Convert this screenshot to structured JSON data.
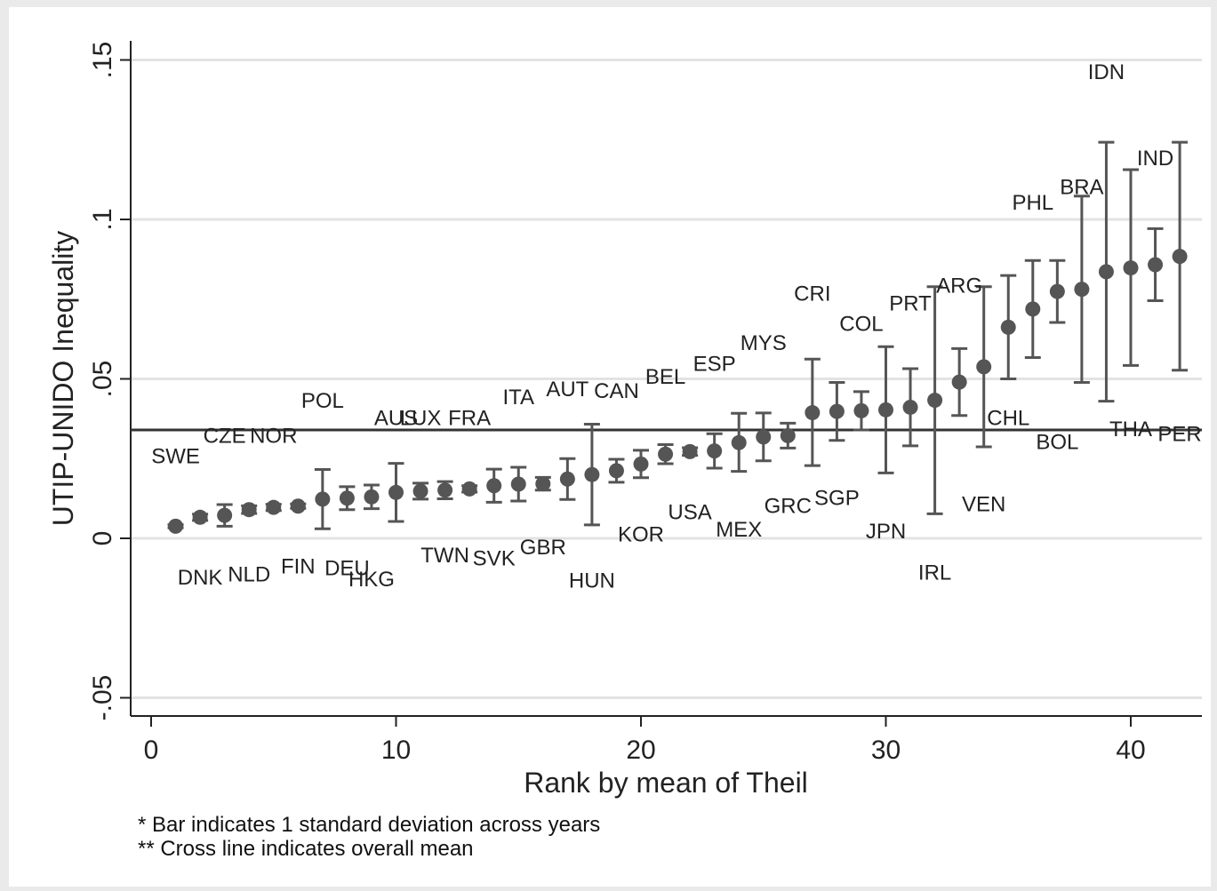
{
  "chart_data": {
    "type": "scatter",
    "xlabel": "Rank by mean of Theil",
    "ylabel": "UTIP-UNIDO Inequality",
    "xlim": [
      -0.8,
      42.5
    ],
    "ylim": [
      -0.056,
      0.156
    ],
    "x_ticks": [
      0,
      10,
      20,
      30,
      40
    ],
    "x_tick_labels": [
      "0",
      "10",
      "20",
      "30",
      "40"
    ],
    "y_ticks": [
      -0.05,
      0,
      0.05,
      0.1,
      0.15
    ],
    "y_tick_labels": [
      "-.05",
      "0",
      ".05",
      ".1",
      ".15"
    ],
    "grid": true,
    "overall_mean": 0.034,
    "notes": [
      "* Bar indicates 1 standard deviation across years",
      "** Cross line indicates overall mean"
    ],
    "points": [
      {
        "rank": 1,
        "mean": 0.0038,
        "lo": 0.0033,
        "hi": 0.0043
      },
      {
        "rank": 2,
        "mean": 0.0066,
        "lo": 0.0056,
        "hi": 0.0076
      },
      {
        "rank": 3,
        "mean": 0.0072,
        "lo": 0.0038,
        "hi": 0.0106
      },
      {
        "rank": 4,
        "mean": 0.009,
        "lo": 0.0078,
        "hi": 0.0102
      },
      {
        "rank": 5,
        "mean": 0.0097,
        "lo": 0.0087,
        "hi": 0.0107
      },
      {
        "rank": 6,
        "mean": 0.0101,
        "lo": 0.0094,
        "hi": 0.0108
      },
      {
        "rank": 7,
        "mean": 0.0123,
        "lo": 0.003,
        "hi": 0.0216
      },
      {
        "rank": 8,
        "mean": 0.0126,
        "lo": 0.009,
        "hi": 0.0162
      },
      {
        "rank": 9,
        "mean": 0.013,
        "lo": 0.0093,
        "hi": 0.0167
      },
      {
        "rank": 10,
        "mean": 0.0144,
        "lo": 0.0053,
        "hi": 0.0235
      },
      {
        "rank": 11,
        "mean": 0.0148,
        "lo": 0.0123,
        "hi": 0.0173
      },
      {
        "rank": 12,
        "mean": 0.0151,
        "lo": 0.0124,
        "hi": 0.0178
      },
      {
        "rank": 13,
        "mean": 0.0155,
        "lo": 0.0145,
        "hi": 0.0165
      },
      {
        "rank": 14,
        "mean": 0.0165,
        "lo": 0.0113,
        "hi": 0.0217
      },
      {
        "rank": 15,
        "mean": 0.017,
        "lo": 0.0117,
        "hi": 0.0223
      },
      {
        "rank": 16,
        "mean": 0.0171,
        "lo": 0.0151,
        "hi": 0.0191
      },
      {
        "rank": 17,
        "mean": 0.0186,
        "lo": 0.0122,
        "hi": 0.025
      },
      {
        "rank": 18,
        "mean": 0.02,
        "lo": 0.0042,
        "hi": 0.0358
      },
      {
        "rank": 19,
        "mean": 0.0212,
        "lo": 0.0176,
        "hi": 0.0248
      },
      {
        "rank": 20,
        "mean": 0.0233,
        "lo": 0.019,
        "hi": 0.0276
      },
      {
        "rank": 21,
        "mean": 0.0264,
        "lo": 0.0234,
        "hi": 0.0294
      },
      {
        "rank": 22,
        "mean": 0.0272,
        "lo": 0.026,
        "hi": 0.0284
      },
      {
        "rank": 23,
        "mean": 0.0274,
        "lo": 0.022,
        "hi": 0.0328
      },
      {
        "rank": 24,
        "mean": 0.03,
        "lo": 0.021,
        "hi": 0.0392
      },
      {
        "rank": 25,
        "mean": 0.0318,
        "lo": 0.0243,
        "hi": 0.0393
      },
      {
        "rank": 26,
        "mean": 0.0322,
        "lo": 0.0283,
        "hi": 0.0361
      },
      {
        "rank": 27,
        "mean": 0.0394,
        "lo": 0.0228,
        "hi": 0.0562
      },
      {
        "rank": 28,
        "mean": 0.0398,
        "lo": 0.0307,
        "hi": 0.0489
      },
      {
        "rank": 29,
        "mean": 0.04,
        "lo": 0.034,
        "hi": 0.046
      },
      {
        "rank": 30,
        "mean": 0.0403,
        "lo": 0.0205,
        "hi": 0.0601
      },
      {
        "rank": 31,
        "mean": 0.0411,
        "lo": 0.029,
        "hi": 0.0532
      },
      {
        "rank": 32,
        "mean": 0.0433,
        "lo": 0.0077,
        "hi": 0.0789
      },
      {
        "rank": 33,
        "mean": 0.049,
        "lo": 0.0385,
        "hi": 0.0595
      },
      {
        "rank": 34,
        "mean": 0.0538,
        "lo": 0.0287,
        "hi": 0.0789
      },
      {
        "rank": 35,
        "mean": 0.0662,
        "lo": 0.05,
        "hi": 0.0824
      },
      {
        "rank": 36,
        "mean": 0.0719,
        "lo": 0.0567,
        "hi": 0.0871
      },
      {
        "rank": 37,
        "mean": 0.0774,
        "lo": 0.0677,
        "hi": 0.0871
      },
      {
        "rank": 38,
        "mean": 0.0781,
        "lo": 0.0489,
        "hi": 0.1073
      },
      {
        "rank": 39,
        "mean": 0.0836,
        "lo": 0.043,
        "hi": 0.1242
      },
      {
        "rank": 40,
        "mean": 0.0848,
        "lo": 0.0542,
        "hi": 0.1156
      },
      {
        "rank": 41,
        "mean": 0.0858,
        "lo": 0.0745,
        "hi": 0.0971
      },
      {
        "rank": 42,
        "mean": 0.0884,
        "lo": 0.0527,
        "hi": 0.1242
      }
    ],
    "labels": [
      {
        "text": "SWE",
        "x": 1.0,
        "y": 0.0235
      },
      {
        "text": "DNK",
        "x": 2.0,
        "y": -0.0145
      },
      {
        "text": "CZE",
        "x": 3.0,
        "y": 0.03
      },
      {
        "text": "NLD",
        "x": 4.0,
        "y": -0.0135
      },
      {
        "text": "NOR",
        "x": 5.0,
        "y": 0.03
      },
      {
        "text": "FIN",
        "x": 6.0,
        "y": -0.011
      },
      {
        "text": "POL",
        "x": 7.0,
        "y": 0.041
      },
      {
        "text": "DEU",
        "x": 8.0,
        "y": -0.0115
      },
      {
        "text": "HKG",
        "x": 9.0,
        "y": -0.015
      },
      {
        "text": "AUS",
        "x": 10.0,
        "y": 0.0355
      },
      {
        "text": "LUX",
        "x": 11.0,
        "y": 0.0355
      },
      {
        "text": "TWN",
        "x": 12.0,
        "y": -0.0075
      },
      {
        "text": "FRA",
        "x": 13.0,
        "y": 0.0355
      },
      {
        "text": "SVK",
        "x": 14.0,
        "y": -0.0085
      },
      {
        "text": "ITA",
        "x": 15.0,
        "y": 0.042
      },
      {
        "text": "GBR",
        "x": 16.0,
        "y": -0.005
      },
      {
        "text": "AUT",
        "x": 17.0,
        "y": 0.0445
      },
      {
        "text": "HUN",
        "x": 18.0,
        "y": -0.0155
      },
      {
        "text": "CAN",
        "x": 19.0,
        "y": 0.044
      },
      {
        "text": "KOR",
        "x": 20.0,
        "y": -0.001
      },
      {
        "text": "BEL",
        "x": 21.0,
        "y": 0.0485
      },
      {
        "text": "USA",
        "x": 22.0,
        "y": 0.006
      },
      {
        "text": "ESP",
        "x": 23.0,
        "y": 0.0525
      },
      {
        "text": "MEX",
        "x": 24.0,
        "y": 0.0005
      },
      {
        "text": "MYS",
        "x": 25.0,
        "y": 0.059
      },
      {
        "text": "GRC",
        "x": 26.0,
        "y": 0.008
      },
      {
        "text": "CRI",
        "x": 27.0,
        "y": 0.0745
      },
      {
        "text": "SGP",
        "x": 28.0,
        "y": 0.0105
      },
      {
        "text": "COL",
        "x": 29.0,
        "y": 0.065
      },
      {
        "text": "JPN",
        "x": 30.0,
        "y": 0.0
      },
      {
        "text": "PRT",
        "x": 31.0,
        "y": 0.0715
      },
      {
        "text": "IRL",
        "x": 32.0,
        "y": -0.013
      },
      {
        "text": "ARG",
        "x": 33.0,
        "y": 0.077
      },
      {
        "text": "VEN",
        "x": 34.0,
        "y": 0.0085
      },
      {
        "text": "CHL",
        "x": 35.0,
        "y": 0.0355
      },
      {
        "text": "PHL",
        "x": 36.0,
        "y": 0.103
      },
      {
        "text": "BOL",
        "x": 37.0,
        "y": 0.028
      },
      {
        "text": "BRA",
        "x": 38.0,
        "y": 0.108
      },
      {
        "text": "IDN",
        "x": 39.0,
        "y": 0.144
      },
      {
        "text": "THA",
        "x": 40.0,
        "y": 0.032
      },
      {
        "text": "IND",
        "x": 41.0,
        "y": 0.117
      },
      {
        "text": "PER",
        "x": 42.0,
        "y": 0.0305
      }
    ]
  }
}
